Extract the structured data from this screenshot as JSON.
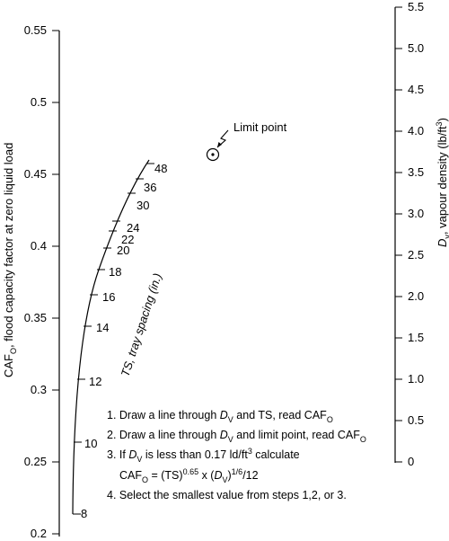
{
  "left_axis": {
    "label_main": "CAF",
    "label_sub": "O",
    "label_rest": ", flood capacity factor at zero liquid load",
    "ticks": [
      "0.55",
      "0.5",
      "0.45",
      "0.4",
      "0.35",
      "0.3",
      "0.25",
      "0.2"
    ]
  },
  "right_axis": {
    "label_sym": "D",
    "label_sub": "v",
    "label_rest": ", vapour density (lb/ft",
    "label_sup": "3",
    "label_close": ")",
    "ticks": [
      "5.5",
      "5.0",
      "4.5",
      "4.0",
      "3.5",
      "3.0",
      "2.5",
      "2.0",
      "1.5",
      "1.0",
      "0.5",
      "0"
    ]
  },
  "ts_scale": {
    "label": "TS, tray spacing (in.)",
    "ticks": [
      "8",
      "10",
      "12",
      "14",
      "16",
      "18",
      "20",
      "22",
      "24",
      "30",
      "36",
      "48"
    ]
  },
  "limit_point": {
    "label": "Limit point"
  },
  "steps": {
    "s1_a": "1. Draw a line through ",
    "s1_d": "D",
    "s1_dsub": "V",
    "s1_b": " and TS, read CAF",
    "s1_sub": "O",
    "s2_a": "2. Draw a line through ",
    "s2_d": "D",
    "s2_dsub": "V",
    "s2_b": " and limit point, read CAF",
    "s2_sub": "O",
    "s3_a": "3. If ",
    "s3_d": "D",
    "s3_dsub": "V",
    "s3_b": " is less than 0.17 ld/ft",
    "s3_sup": "3",
    "s3_c": " calculate",
    "f_a": "CAF",
    "f_sub1": "O",
    "f_b": " = (TS)",
    "f_sup1": "0.65",
    "f_c": " x (",
    "f_d": "D",
    "f_dsub": "V",
    "f_e": ")",
    "f_sup2": "1/6",
    "f_f": "/12",
    "s4": "4. Select the smallest value from steps 1,2, or 3."
  }
}
